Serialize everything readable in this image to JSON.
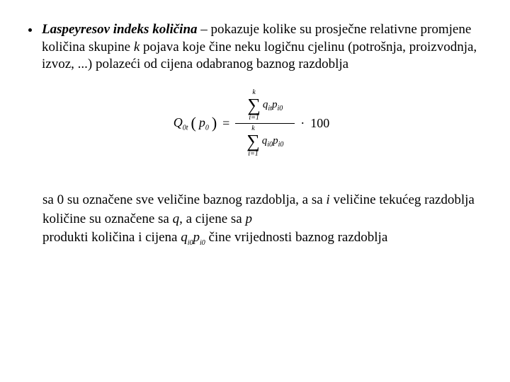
{
  "bullet": {
    "term": "Laspeyresov indeks količina",
    "rest1": " – pokazuje kolike su prosječne relativne promjene količina skupine ",
    "k": "k",
    "rest2": " pojava koje čine neku logičnu cjelinu (potrošnja, proizvodnja, izvoz, ...) polazeći od cijena odabranog baznog razdoblja"
  },
  "formula": {
    "lhs_Q": "Q",
    "lhs_sub": "0t",
    "lp": "(",
    "p": "p",
    "p_sub": "0",
    "rp": ")",
    "eq": "=",
    "sum_top_limit": "k",
    "sum_bot_limit": "i=1",
    "num_q": "q",
    "num_q_sub": "it",
    "num_p": "p",
    "num_p_sub": "i0",
    "den_q": "q",
    "den_q_sub": "i0",
    "den_p": "p",
    "den_p_sub": "i0",
    "dot": "·",
    "hundred": "100"
  },
  "bottom": {
    "line1a": "sa 0 su označene sve veličine baznog razdoblja, a sa ",
    "line1_i": "i",
    "line1b": " veličine tekućeg razdoblja",
    "line2a": "količine su označene sa ",
    "line2_q": "q",
    "line2b": ", a cijene sa ",
    "line2_p": "p",
    "line3a": "produkti količina i cijena ",
    "line3_q": "q",
    "line3_qsub": "i0",
    "line3_p": "p",
    "line3_psub": "i0",
    "line3b": "  čine vrijednosti baznog razdoblja"
  }
}
